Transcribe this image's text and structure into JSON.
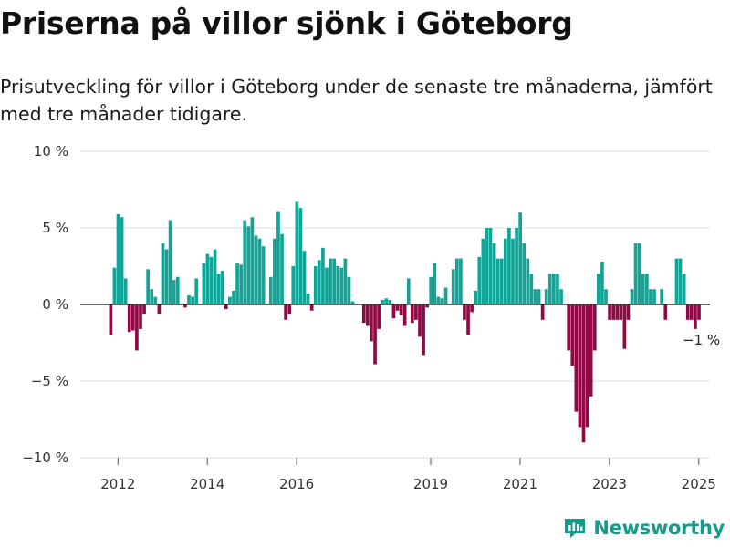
{
  "title": "Priserna på villor sjönk i Göteborg",
  "subtitle": "Prisutveckling för villor i Göteborg under de senaste tre månaderna, jämfört med tre månader tidigare.",
  "brand": {
    "name": "Newsworthy",
    "icon": "newsworthy-logo-icon"
  },
  "colors": {
    "positive": "#10a596",
    "negative": "#8f0a44",
    "grid": "#dddddd",
    "zero_line": "#333333",
    "brand": "#149b8b"
  },
  "chart_data": {
    "type": "bar",
    "title": "Priserna på villor sjönk i Göteborg",
    "xlabel": "",
    "ylabel": "",
    "ylim": [
      -10,
      10
    ],
    "y_ticks": [
      10,
      5,
      0,
      -5,
      -10
    ],
    "y_tick_labels": [
      "10 %",
      "5 %",
      "0 %",
      "−5 %",
      "−10 %"
    ],
    "x_ticks": [
      2012,
      2014,
      2016,
      2019,
      2021,
      2023,
      2025
    ],
    "x_tick_labels": [
      "2012",
      "2014",
      "2016",
      "2019",
      "2021",
      "2023",
      "2025"
    ],
    "x_start": 2011.8,
    "interval": "month",
    "last_value_label": "−1 %",
    "values": [
      -2,
      2.4,
      5.9,
      5.7,
      1.7,
      -1.8,
      -1.7,
      -3,
      -1.6,
      -0.6,
      2.3,
      1,
      0.5,
      -0.6,
      4,
      3.6,
      5.5,
      1.6,
      1.8,
      0,
      -0.2,
      0.6,
      0.5,
      1.7,
      0,
      2.7,
      3.3,
      3.1,
      3.6,
      2,
      2.2,
      -0.3,
      0.5,
      0.9,
      2.7,
      2.6,
      5.5,
      5.1,
      5.7,
      4.5,
      4.3,
      3.8,
      0,
      1.8,
      4.3,
      6.1,
      4.6,
      -1,
      -0.6,
      2.5,
      6.7,
      6.3,
      3.5,
      0.7,
      -0.4,
      2.5,
      2.9,
      3.7,
      2.4,
      3,
      3,
      2.5,
      2.4,
      3,
      1.8,
      0.2,
      0,
      0,
      -1.2,
      -1.4,
      -2.4,
      -3.9,
      -1.6,
      0.3,
      0.4,
      0.3,
      -0.9,
      -0.4,
      -0.7,
      -1.4,
      1.7,
      -1.2,
      -1,
      -2.1,
      -3.3,
      -0.2,
      1.8,
      2.7,
      0.5,
      0.4,
      1.1,
      0,
      2.3,
      3,
      3,
      -1,
      -2,
      -0.5,
      0.9,
      3.1,
      4.3,
      5,
      5,
      4,
      3,
      3,
      4.3,
      5,
      4.3,
      5,
      6,
      4,
      3,
      2,
      1,
      1,
      -1,
      1,
      2,
      2,
      2,
      1,
      0,
      -3,
      -4,
      -7,
      -8,
      -9,
      -8,
      -6,
      -3,
      2,
      2.8,
      1,
      -1,
      -1,
      -1,
      -1,
      -2.9,
      -1,
      1,
      4,
      4,
      2,
      2,
      1,
      1,
      0,
      1,
      -1,
      0,
      0,
      3,
      3,
      2,
      -1,
      -1,
      -1.6,
      -1
    ]
  }
}
